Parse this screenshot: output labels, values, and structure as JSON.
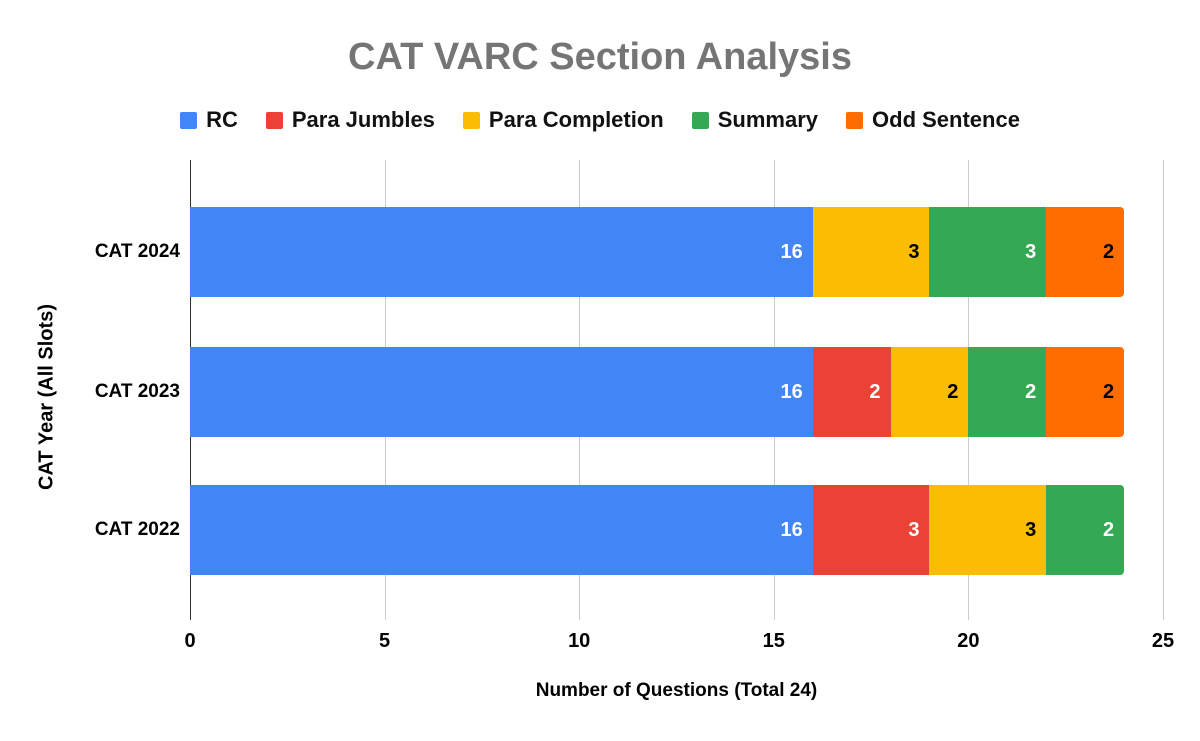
{
  "chart_data": {
    "type": "bar",
    "orientation": "horizontal",
    "stacked": true,
    "title": "CAT VARC Section Analysis",
    "categories": [
      "CAT 2024",
      "CAT 2023",
      "CAT 2022"
    ],
    "series": [
      {
        "name": "RC",
        "color": "#4285F4",
        "label_color": "#ffffff",
        "values": [
          16,
          16,
          16
        ]
      },
      {
        "name": "Para Jumbles",
        "color": "#EA4335",
        "label_color": "#ffffff",
        "values": [
          0,
          2,
          3
        ]
      },
      {
        "name": "Para Completion",
        "color": "#FBBC04",
        "label_color": "#000000",
        "values": [
          3,
          2,
          3
        ]
      },
      {
        "name": "Summary",
        "color": "#34A853",
        "label_color": "#ffffff",
        "values": [
          3,
          2,
          2
        ]
      },
      {
        "name": "Odd Sentence",
        "color": "#FF6D01",
        "label_color": "#000000",
        "values": [
          2,
          2,
          0
        ]
      }
    ],
    "xlabel": "Number of Questions (Total 24)",
    "ylabel": "CAT Year (All Slots)",
    "xlim": [
      0,
      25
    ],
    "xticks": [
      0,
      5,
      10,
      15,
      20,
      25
    ],
    "legend_position": "top",
    "grid": true
  },
  "colors": {
    "background": "#ffffff",
    "title_text": "#757575",
    "axis_line": "#333333",
    "gridline": "#cccccc",
    "label_text": "#000000"
  }
}
